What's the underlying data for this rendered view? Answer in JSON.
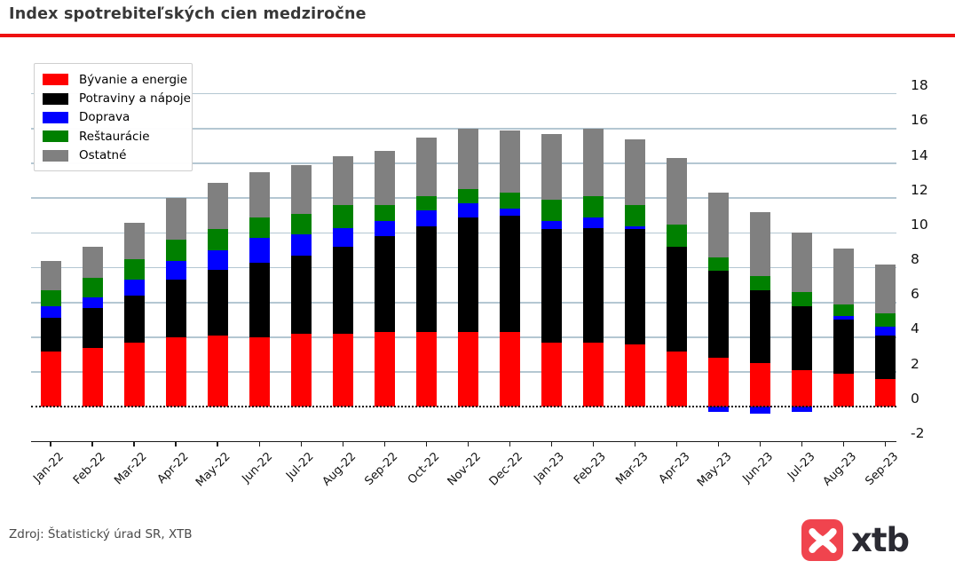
{
  "page": {
    "title": "Index spotrebiteľských cien medziročne",
    "source": "Zdroj: Štatistický úrad SR, XTB",
    "divider_color": "#ee1111"
  },
  "logo": {
    "text": "xtb",
    "icon": "xtb-bird-icon",
    "badge_color": "#f0444e",
    "text_color": "#2b2b33"
  },
  "chart_data": {
    "type": "bar",
    "stacked": true,
    "title": "Index spotrebiteľských cien medziročne",
    "xlabel": "",
    "ylabel": "",
    "ylim": [
      -2,
      19
    ],
    "yticks": [
      -2,
      0,
      2,
      4,
      6,
      8,
      10,
      12,
      14,
      16,
      18
    ],
    "y_axis_side": "right",
    "grid": true,
    "gridline_color": "#b4c7d2",
    "zero_line_style": "dotted",
    "legend_position": "top-left",
    "categories": [
      "Jan-22",
      "Feb-22",
      "Mar-22",
      "Apr-22",
      "May-22",
      "Jun-22",
      "Jul-22",
      "Aug-22",
      "Sep-22",
      "Oct-22",
      "Nov-22",
      "Dec-22",
      "Jan-23",
      "Feb-23",
      "Mar-23",
      "Apr-23",
      "May-23",
      "Jun-23",
      "Jul-23",
      "Aug-23",
      "Sep-23"
    ],
    "series": [
      {
        "name": "Bývanie a energie",
        "color": "#ff0000",
        "values": [
          3.2,
          3.4,
          3.7,
          4.0,
          4.1,
          4.0,
          4.2,
          4.2,
          4.3,
          4.3,
          4.3,
          4.3,
          3.7,
          3.7,
          3.6,
          3.2,
          2.8,
          2.5,
          2.1,
          1.9,
          1.6
        ]
      },
      {
        "name": "Potraviny a nápoje",
        "color": "#000000",
        "values": [
          1.9,
          2.3,
          2.7,
          3.3,
          3.8,
          4.3,
          4.5,
          5.0,
          5.5,
          6.1,
          6.6,
          6.7,
          6.5,
          6.6,
          6.6,
          6.0,
          5.0,
          4.2,
          3.7,
          3.1,
          2.5
        ]
      },
      {
        "name": "Doprava",
        "color": "#0000ff",
        "values": [
          0.7,
          0.6,
          0.9,
          1.1,
          1.1,
          1.4,
          1.2,
          1.1,
          0.9,
          0.9,
          0.8,
          0.4,
          0.5,
          0.6,
          0.2,
          0.0,
          -0.3,
          -0.4,
          -0.3,
          0.2,
          0.5
        ]
      },
      {
        "name": "Reštaurácie",
        "color": "#008000",
        "values": [
          0.9,
          1.1,
          1.2,
          1.2,
          1.2,
          1.2,
          1.2,
          1.3,
          0.9,
          0.8,
          0.8,
          0.9,
          1.2,
          1.2,
          1.2,
          1.3,
          0.8,
          0.8,
          0.8,
          0.7,
          0.8
        ]
      },
      {
        "name": "Ostatné",
        "color": "#808080",
        "values": [
          1.7,
          1.8,
          2.1,
          2.4,
          2.7,
          2.6,
          2.8,
          2.8,
          3.1,
          3.4,
          3.5,
          3.6,
          3.8,
          3.9,
          3.8,
          3.8,
          3.7,
          3.7,
          3.4,
          3.2,
          2.8
        ]
      }
    ],
    "totals": [
      8.4,
      9.2,
      10.6,
      12.0,
      12.9,
      13.5,
      13.9,
      14.4,
      14.7,
      15.5,
      16.0,
      15.9,
      15.7,
      16.0,
      15.4,
      14.3,
      12.3,
      11.2,
      10.0,
      9.1,
      8.2
    ]
  }
}
